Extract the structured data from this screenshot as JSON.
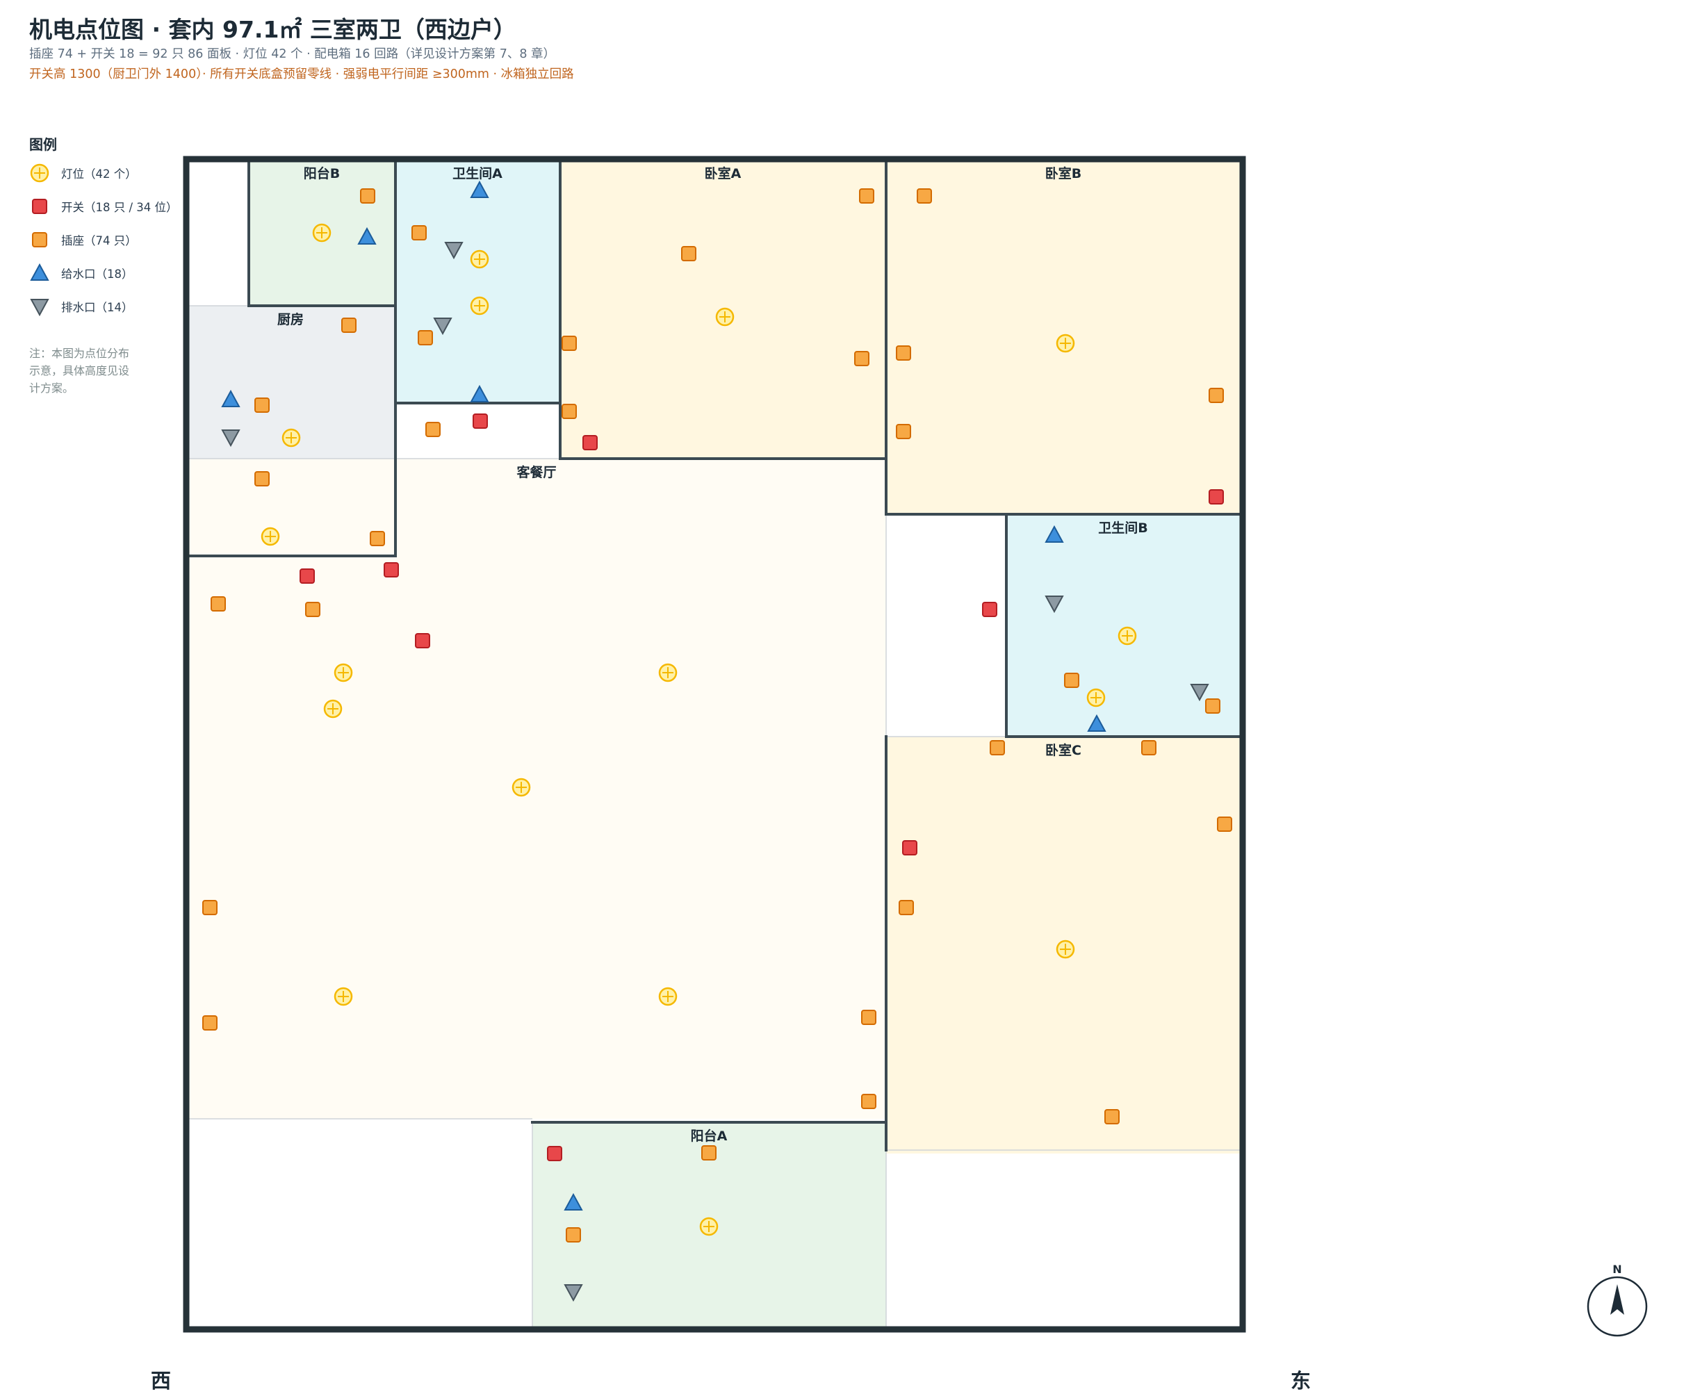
{
  "header": {
    "title": "机电点位图 · 套内 97.1㎡ 三室两卫（西边户）",
    "subtitle1": "插座 74 + 开关 18 = 92 只 86 面板 · 灯位 42 个 · 配电箱 16 回路（详见设计方案第 7、8 章）",
    "subtitle2": "开关高 1300（厨卫门外 1400）· 所有开关底盒预留零线 · 强弱电平行间距 ≥300mm · 冰箱独立回路"
  },
  "legend": {
    "title": "图例",
    "items": [
      {
        "icon": "light-icon",
        "label": "灯位（42 个）",
        "color": "#f5b800"
      },
      {
        "icon": "switch-icon",
        "label": "开关（18 只 / 34 位）",
        "color": "#e8474a"
      },
      {
        "icon": "socket-icon",
        "label": "插座（74 只）",
        "color": "#f7a844"
      },
      {
        "icon": "water-supply-icon",
        "label": "给水口（18）",
        "color": "#3d8fdc"
      },
      {
        "icon": "drain-icon",
        "label": "排水口（14）",
        "color": "#8d9aa3"
      }
    ],
    "note": "注：本图为点位分布示意，具体高度见设计方案。"
  },
  "directions": {
    "west": "西",
    "east": "东",
    "north": "N"
  },
  "colors": {
    "wall": "#263238",
    "living": "#fffcf4",
    "bedroom": "#fff7e0",
    "bathroom": "#e0f5f8",
    "balcony": "#e7f4e8",
    "kitchen": "#eceff2"
  },
  "rooms": [
    {
      "id": "balcony-b",
      "name": "阳台B",
      "type": "balcony"
    },
    {
      "id": "bath-a",
      "name": "卫生间A",
      "type": "bathroom"
    },
    {
      "id": "bedroom-a",
      "name": "卧室A",
      "type": "bedroom"
    },
    {
      "id": "bedroom-b",
      "name": "卧室B",
      "type": "bedroom"
    },
    {
      "id": "kitchen",
      "name": "厨房",
      "type": "kitchen"
    },
    {
      "id": "living",
      "name": "客餐厅",
      "type": "living"
    },
    {
      "id": "bath-b",
      "name": "卫生间B",
      "type": "bathroom"
    },
    {
      "id": "bedroom-c",
      "name": "卧室C",
      "type": "bedroom"
    },
    {
      "id": "balcony-a",
      "name": "阳台A",
      "type": "balcony"
    }
  ]
}
